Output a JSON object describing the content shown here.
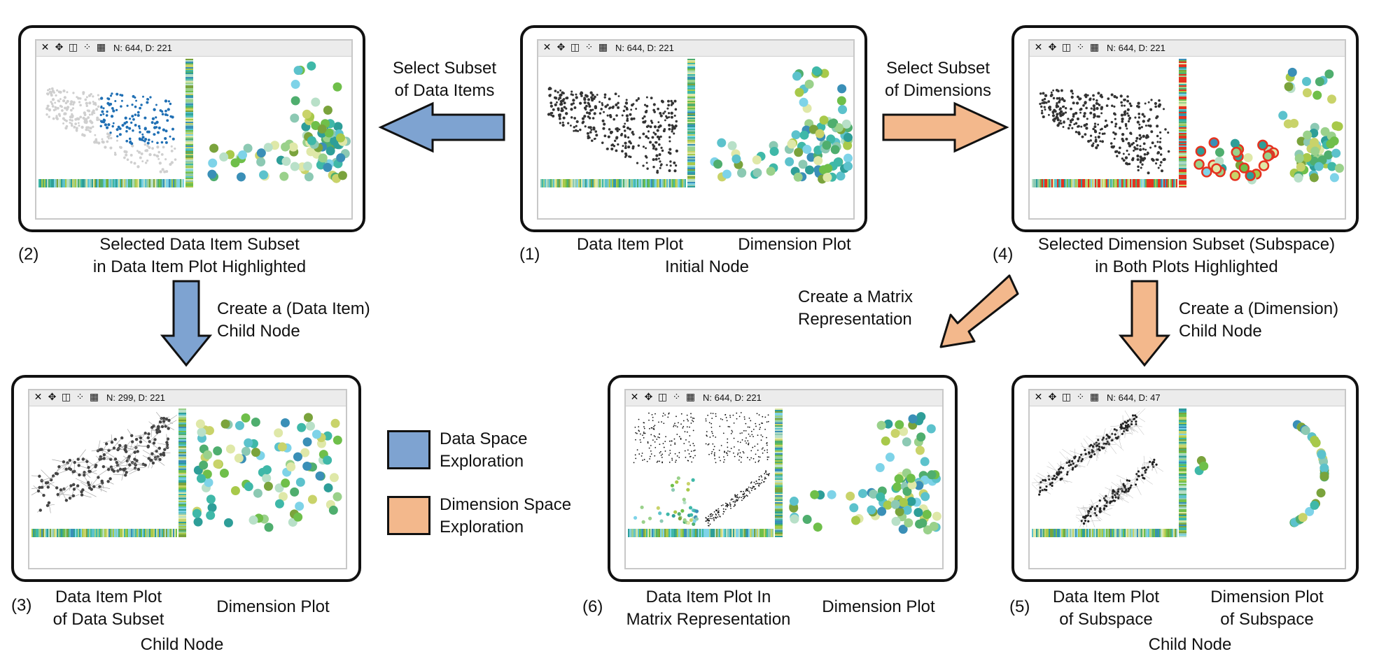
{
  "colors": {
    "data_space": "#7ea3d1",
    "dimension_space": "#f3b88c",
    "data_highlight": "#1f6fb4",
    "dimension_highlight": "#e53320",
    "window_border": "#c8c8c8"
  },
  "toolbar_icons": [
    "close-icon",
    "move-icon",
    "panel-layout-icon",
    "scatter-icon",
    "matrix-icon"
  ],
  "nodes": {
    "n1": {
      "count": "N: 644, D: 221",
      "index": "(1)",
      "left_label": "Data Item Plot",
      "right_label": "Dimension Plot",
      "caption": "Initial Node"
    },
    "n2": {
      "count": "N: 644, D: 221",
      "index": "(2)",
      "caption_line1": "Selected Data Item Subset",
      "caption_line2": "in Data Item Plot Highlighted"
    },
    "n3": {
      "count": "N: 299, D: 221",
      "index": "(3)",
      "left_line1": "Data Item Plot",
      "left_line2": "of Data Subset",
      "right_label": "Dimension Plot",
      "caption": "Child Node"
    },
    "n4": {
      "count": "N: 644, D: 221",
      "index": "(4)",
      "caption_line1": "Selected Dimension Subset (Subspace)",
      "caption_line2": "in Both Plots Highlighted"
    },
    "n5": {
      "count": "N: 644, D: 47",
      "index": "(5)",
      "left_line1": "Data Item Plot",
      "left_line2": "of Subspace",
      "right_line1": "Dimension Plot",
      "right_line2": "of Subspace",
      "caption": "Child Node"
    },
    "n6": {
      "count": "N: 644, D: 221",
      "index": "(6)",
      "left_line1": "Data Item Plot In",
      "left_line2": "Matrix Representation",
      "right_label": "Dimension Plot"
    }
  },
  "arrows": {
    "select_items": {
      "line1": "Select Subset",
      "line2": "of Data Items"
    },
    "select_dims": {
      "line1": "Select Subset",
      "line2": "of Dimensions"
    },
    "create_item_child": {
      "line1": "Create a (Data Item)",
      "line2": "Child Node"
    },
    "create_matrix": {
      "line1": "Create a Matrix",
      "line2": "Representation"
    },
    "create_dim_child": {
      "line1": "Create a (Dimension)",
      "line2": "Child Node"
    }
  },
  "legend": {
    "data_space": {
      "line1": "Data Space",
      "line2": "Exploration"
    },
    "dimension_space": {
      "line1": "Dimension Space",
      "line2": "Exploration"
    }
  }
}
